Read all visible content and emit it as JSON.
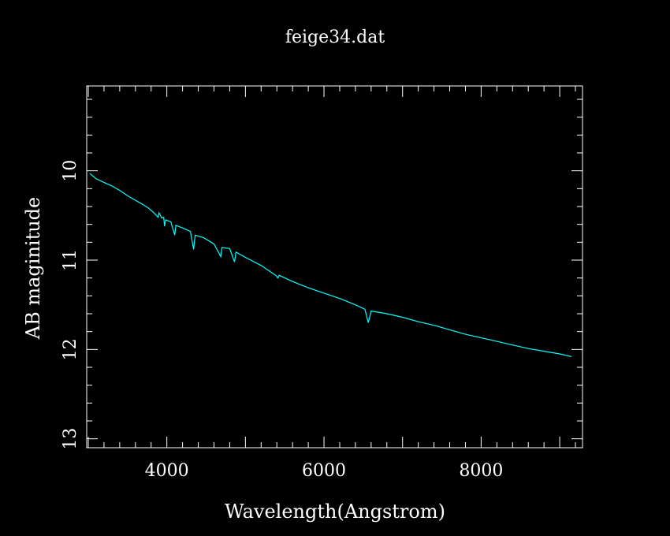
{
  "chart_data": {
    "type": "line",
    "title": "feige34.dat",
    "xlabel": "Wavelength(Angstrom)",
    "ylabel": "AB maginitude",
    "xlim": [
      2980,
      9290
    ],
    "ylim": [
      13.1,
      9.05
    ],
    "y_inverted": true,
    "grid": false,
    "x_ticks": [
      4000,
      6000,
      8000
    ],
    "x_tick_labels": [
      "4000",
      "6000",
      "8000"
    ],
    "y_ticks": [
      10,
      11,
      12,
      13
    ],
    "y_tick_labels": [
      "10",
      "11",
      "12",
      "13"
    ],
    "colors": {
      "background": "#000000",
      "axes": "#ffffff",
      "line": "#00ffff"
    },
    "series": [
      {
        "color": "#00ffff",
        "points": [
          [
            3020,
            10.03
          ],
          [
            3060,
            10.06
          ],
          [
            3100,
            10.09
          ],
          [
            3150,
            10.11
          ],
          [
            3200,
            10.13
          ],
          [
            3300,
            10.17
          ],
          [
            3400,
            10.22
          ],
          [
            3500,
            10.28
          ],
          [
            3600,
            10.33
          ],
          [
            3700,
            10.38
          ],
          [
            3770,
            10.42
          ],
          [
            3835,
            10.47
          ],
          [
            3889,
            10.52
          ],
          [
            3900,
            10.47
          ],
          [
            3935,
            10.53
          ],
          [
            3960,
            10.52
          ],
          [
            3970,
            10.62
          ],
          [
            3985,
            10.55
          ],
          [
            4050,
            10.57
          ],
          [
            4101,
            10.72
          ],
          [
            4115,
            10.61
          ],
          [
            4200,
            10.64
          ],
          [
            4300,
            10.68
          ],
          [
            4340,
            10.88
          ],
          [
            4360,
            10.72
          ],
          [
            4471,
            10.75
          ],
          [
            4600,
            10.82
          ],
          [
            4686,
            10.96
          ],
          [
            4700,
            10.86
          ],
          [
            4800,
            10.87
          ],
          [
            4861,
            11.02
          ],
          [
            4880,
            10.91
          ],
          [
            5000,
            10.97
          ],
          [
            5200,
            11.06
          ],
          [
            5400,
            11.18
          ],
          [
            5411,
            11.2
          ],
          [
            5430,
            11.17
          ],
          [
            5600,
            11.24
          ],
          [
            5800,
            11.31
          ],
          [
            6000,
            11.37
          ],
          [
            6200,
            11.43
          ],
          [
            6400,
            11.5
          ],
          [
            6520,
            11.55
          ],
          [
            6563,
            11.7
          ],
          [
            6600,
            11.57
          ],
          [
            6800,
            11.6
          ],
          [
            7000,
            11.64
          ],
          [
            7200,
            11.69
          ],
          [
            7400,
            11.73
          ],
          [
            7600,
            11.78
          ],
          [
            7800,
            11.83
          ],
          [
            8000,
            11.87
          ],
          [
            8200,
            11.91
          ],
          [
            8400,
            11.95
          ],
          [
            8600,
            11.99
          ],
          [
            8800,
            12.02
          ],
          [
            9000,
            12.05
          ],
          [
            9150,
            12.08
          ]
        ]
      }
    ]
  }
}
